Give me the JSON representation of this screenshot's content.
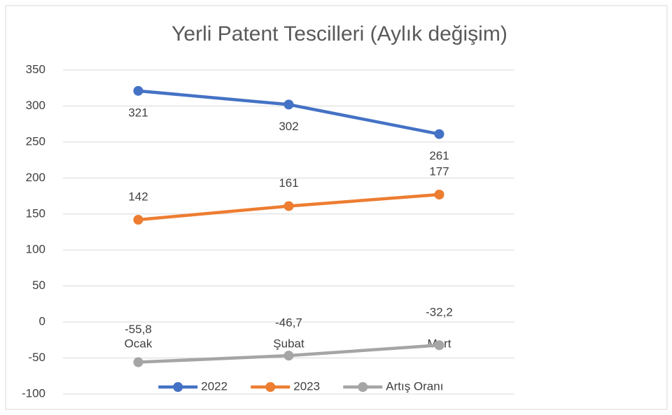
{
  "chart_data": {
    "type": "line",
    "title": "Yerli Patent Tescilleri (Aylık değişim)",
    "categories": [
      "Ocak",
      "Şubat",
      "Mart"
    ],
    "series": [
      {
        "name": "2022",
        "color": "#4472c4",
        "values": [
          321,
          302,
          261
        ]
      },
      {
        "name": "2023",
        "color": "#ed7d31",
        "values": [
          142,
          161,
          177
        ]
      },
      {
        "name": "Artış Oranı",
        "color": "#a5a5a5",
        "values": [
          -55.8,
          -46.7,
          -32.2
        ],
        "value_labels": [
          "-55,8",
          "-46,7",
          "-32,2"
        ]
      }
    ],
    "ylim": [
      -100,
      350
    ],
    "yticks": [
      -100,
      -50,
      0,
      50,
      100,
      150,
      200,
      250,
      300,
      350
    ],
    "grid": true,
    "legend": "bottom"
  }
}
